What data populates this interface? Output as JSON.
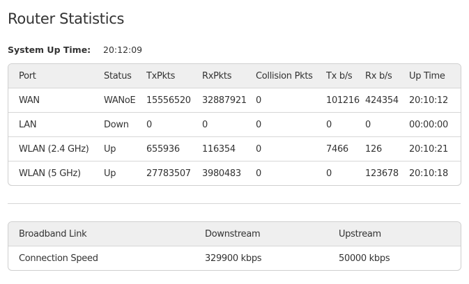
{
  "page": {
    "title": "Router Statistics"
  },
  "system": {
    "label": "System Up Time:",
    "value": "20:12:09"
  },
  "stats": {
    "headers": [
      "Port",
      "Status",
      "TxPkts",
      "RxPkts",
      "Collision Pkts",
      "Tx b/s",
      "Rx b/s",
      "Up Time"
    ],
    "rows": [
      [
        "WAN",
        "WANoE",
        "15556520",
        "32887921",
        "0",
        "101216",
        "424354",
        "20:10:12"
      ],
      [
        "LAN",
        "Down",
        "0",
        "0",
        "0",
        "0",
        "0",
        "00:00:00"
      ],
      [
        "WLAN (2.4 GHz)",
        "Up",
        "655936",
        "116354",
        "0",
        "7466",
        "126",
        "20:10:21"
      ],
      [
        "WLAN (5 GHz)",
        "Up",
        "27783507",
        "3980483",
        "0",
        "0",
        "123678",
        "20:10:18"
      ]
    ]
  },
  "broadband": {
    "headers": [
      "Broadband Link",
      "Downstream",
      "Upstream"
    ],
    "rows": [
      [
        "Connection Speed",
        "329900 kbps",
        "50000 kbps"
      ]
    ]
  }
}
